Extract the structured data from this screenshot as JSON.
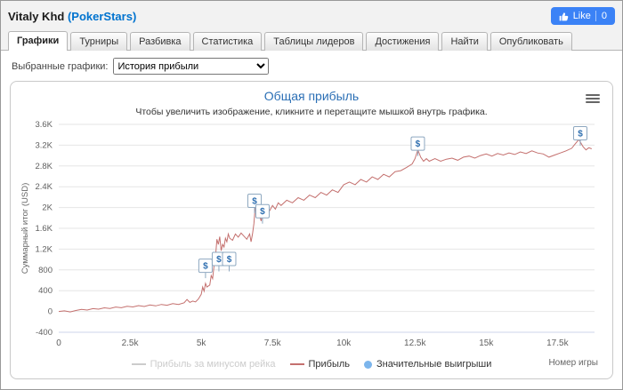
{
  "header": {
    "player_name": "Vitaly Khd",
    "network": "(PokerStars)",
    "like_label": "Like",
    "like_count": "0"
  },
  "tabs": [
    {
      "label": "Графики",
      "active": true
    },
    {
      "label": "Турниры",
      "active": false
    },
    {
      "label": "Разбивка",
      "active": false
    },
    {
      "label": "Статистика",
      "active": false
    },
    {
      "label": "Таблицы лидеров",
      "active": false
    },
    {
      "label": "Достижения",
      "active": false
    },
    {
      "label": "Найти",
      "active": false
    },
    {
      "label": "Опубликовать",
      "active": false
    }
  ],
  "graph_selector": {
    "label": "Выбранные графики:",
    "selected": "История прибыли"
  },
  "chart": {
    "title": "Общая прибыль",
    "subtitle": "Чтобы увеличить изображение, кликните и перетащите мышкой внутрь графика."
  },
  "chart_data": {
    "type": "line",
    "title": "Общая прибыль",
    "xlabel": "Номер игры",
    "ylabel": "Суммарный итог (USD)",
    "xlim": [
      0,
      18800
    ],
    "ylim": [
      -400,
      3600
    ],
    "grid": true,
    "legend_position": "bottom",
    "x_ticks": [
      {
        "v": 0,
        "label": "0"
      },
      {
        "v": 2500,
        "label": "2.5k"
      },
      {
        "v": 5000,
        "label": "5k"
      },
      {
        "v": 7500,
        "label": "7.5k"
      },
      {
        "v": 10000,
        "label": "10k"
      },
      {
        "v": 12500,
        "label": "12.5k"
      },
      {
        "v": 15000,
        "label": "15k"
      },
      {
        "v": 17500,
        "label": "17.5k"
      }
    ],
    "y_ticks": [
      {
        "v": -400,
        "label": "-400"
      },
      {
        "v": 0,
        "label": "0"
      },
      {
        "v": 400,
        "label": "400"
      },
      {
        "v": 800,
        "label": "800"
      },
      {
        "v": 1200,
        "label": "1.2K"
      },
      {
        "v": 1600,
        "label": "1.6K"
      },
      {
        "v": 2000,
        "label": "2K"
      },
      {
        "v": 2400,
        "label": "2.4K"
      },
      {
        "v": 2800,
        "label": "2.8K"
      },
      {
        "v": 3200,
        "label": "3.2K"
      },
      {
        "v": 3600,
        "label": "3.6K"
      }
    ],
    "series": [
      {
        "name": "Прибыль",
        "color": "#c4706e",
        "points": [
          [
            0,
            0
          ],
          [
            200,
            12
          ],
          [
            400,
            -8
          ],
          [
            600,
            18
          ],
          [
            800,
            40
          ],
          [
            1000,
            28
          ],
          [
            1200,
            55
          ],
          [
            1400,
            45
          ],
          [
            1600,
            70
          ],
          [
            1800,
            58
          ],
          [
            2000,
            85
          ],
          [
            2200,
            72
          ],
          [
            2400,
            100
          ],
          [
            2600,
            88
          ],
          [
            2800,
            112
          ],
          [
            3000,
            96
          ],
          [
            3200,
            125
          ],
          [
            3400,
            108
          ],
          [
            3600,
            135
          ],
          [
            3800,
            120
          ],
          [
            4000,
            150
          ],
          [
            4200,
            135
          ],
          [
            4400,
            168
          ],
          [
            4500,
            230
          ],
          [
            4600,
            175
          ],
          [
            4700,
            200
          ],
          [
            4800,
            185
          ],
          [
            4900,
            240
          ],
          [
            5000,
            330
          ],
          [
            5050,
            470
          ],
          [
            5100,
            390
          ],
          [
            5150,
            540
          ],
          [
            5200,
            470
          ],
          [
            5300,
            510
          ],
          [
            5350,
            690
          ],
          [
            5400,
            630
          ],
          [
            5450,
            880
          ],
          [
            5500,
            1040
          ],
          [
            5550,
            1390
          ],
          [
            5600,
            1290
          ],
          [
            5650,
            1440
          ],
          [
            5700,
            1170
          ],
          [
            5750,
            1290
          ],
          [
            5800,
            1240
          ],
          [
            5850,
            1410
          ],
          [
            5900,
            1340
          ],
          [
            5950,
            1490
          ],
          [
            6000,
            1410
          ],
          [
            6100,
            1370
          ],
          [
            6200,
            1490
          ],
          [
            6300,
            1430
          ],
          [
            6400,
            1510
          ],
          [
            6500,
            1450
          ],
          [
            6600,
            1390
          ],
          [
            6700,
            1490
          ],
          [
            6750,
            1340
          ],
          [
            6800,
            1490
          ],
          [
            6850,
            1690
          ],
          [
            6900,
            2040
          ],
          [
            6950,
            1970
          ],
          [
            7000,
            2090
          ],
          [
            7050,
            1840
          ],
          [
            7100,
            1740
          ],
          [
            7150,
            1890
          ],
          [
            7200,
            1990
          ],
          [
            7300,
            1870
          ],
          [
            7400,
            1940
          ],
          [
            7500,
            2040
          ],
          [
            7600,
            1970
          ],
          [
            7700,
            2090
          ],
          [
            7800,
            2040
          ],
          [
            8000,
            2140
          ],
          [
            8200,
            2090
          ],
          [
            8400,
            2190
          ],
          [
            8600,
            2140
          ],
          [
            8800,
            2240
          ],
          [
            9000,
            2190
          ],
          [
            9200,
            2290
          ],
          [
            9400,
            2240
          ],
          [
            9600,
            2340
          ],
          [
            9800,
            2290
          ],
          [
            10000,
            2440
          ],
          [
            10200,
            2490
          ],
          [
            10400,
            2440
          ],
          [
            10600,
            2540
          ],
          [
            10800,
            2490
          ],
          [
            11000,
            2590
          ],
          [
            11200,
            2540
          ],
          [
            11400,
            2640
          ],
          [
            11600,
            2590
          ],
          [
            11800,
            2690
          ],
          [
            12000,
            2710
          ],
          [
            12200,
            2770
          ],
          [
            12400,
            2840
          ],
          [
            12500,
            2940
          ],
          [
            12600,
            3110
          ],
          [
            12700,
            2970
          ],
          [
            12800,
            2890
          ],
          [
            12900,
            2940
          ],
          [
            13000,
            2890
          ],
          [
            13200,
            2940
          ],
          [
            13400,
            2890
          ],
          [
            13600,
            2930
          ],
          [
            13800,
            2950
          ],
          [
            14000,
            2910
          ],
          [
            14200,
            2970
          ],
          [
            14400,
            2990
          ],
          [
            14600,
            2950
          ],
          [
            14800,
            3000
          ],
          [
            15000,
            3030
          ],
          [
            15200,
            2990
          ],
          [
            15400,
            3040
          ],
          [
            15600,
            3010
          ],
          [
            15800,
            3050
          ],
          [
            16000,
            3020
          ],
          [
            16200,
            3070
          ],
          [
            16400,
            3040
          ],
          [
            16600,
            3090
          ],
          [
            16800,
            3050
          ],
          [
            17000,
            3030
          ],
          [
            17200,
            2970
          ],
          [
            17400,
            3010
          ],
          [
            17600,
            3050
          ],
          [
            17800,
            3090
          ],
          [
            18000,
            3140
          ],
          [
            18100,
            3210
          ],
          [
            18250,
            3310
          ],
          [
            18400,
            3170
          ],
          [
            18500,
            3110
          ],
          [
            18600,
            3150
          ],
          [
            18700,
            3130
          ]
        ]
      }
    ],
    "markers": {
      "name": "Значительные выигрыши",
      "symbol": "$",
      "symbol_color": "#2f6fb0",
      "box_stroke": "#8ea8c0",
      "flags": [
        {
          "x": 5150,
          "y": 880
        },
        {
          "x": 5620,
          "y": 1010
        },
        {
          "x": 5980,
          "y": 1010
        },
        {
          "x": 6870,
          "y": 2130
        },
        {
          "x": 7150,
          "y": 1930
        },
        {
          "x": 12600,
          "y": 3230
        },
        {
          "x": 18300,
          "y": 3430
        }
      ]
    },
    "legend": [
      {
        "label": "Прибыль за минусом рейка",
        "swatch": "line",
        "color": "#cccccc",
        "label_color": "#cccccc"
      },
      {
        "label": "Прибыль",
        "swatch": "line",
        "color": "#c4706e",
        "label_color": "#333333"
      },
      {
        "label": "Значительные выигрыши",
        "swatch": "dot",
        "color": "#7cb5ec",
        "label_color": "#333333"
      }
    ],
    "colors": {
      "grid": "#e6e6e6",
      "axis_line": "#ccd6eb",
      "tick_text": "#606060"
    }
  }
}
